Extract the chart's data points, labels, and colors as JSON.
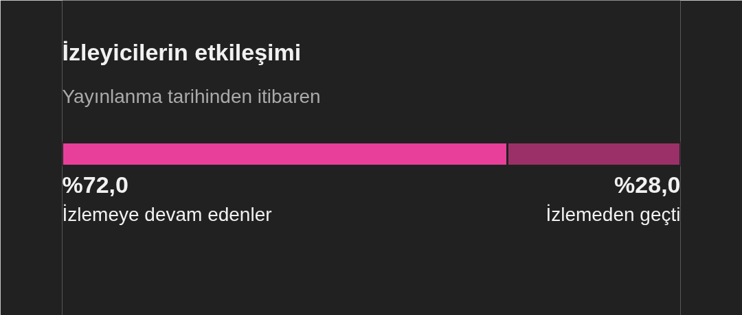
{
  "chart_data": {
    "type": "bar",
    "orientation": "horizontal",
    "stacked": true,
    "title": "İzleyicilerin etkileşimi",
    "subtitle": "Yayınlanma tarihinden itibaren",
    "categories": [
      null
    ],
    "tick_labels": false,
    "series": [
      {
        "name": "İzlemeye devam edenler",
        "color": "#e8409a",
        "values": [
          72.0
        ],
        "value_labels": [
          "%72,0"
        ]
      },
      {
        "name": "İzlemeden geçti",
        "color": "#9b3068",
        "values": [
          28.0
        ],
        "value_labels": [
          "%28,0"
        ]
      }
    ]
  }
}
